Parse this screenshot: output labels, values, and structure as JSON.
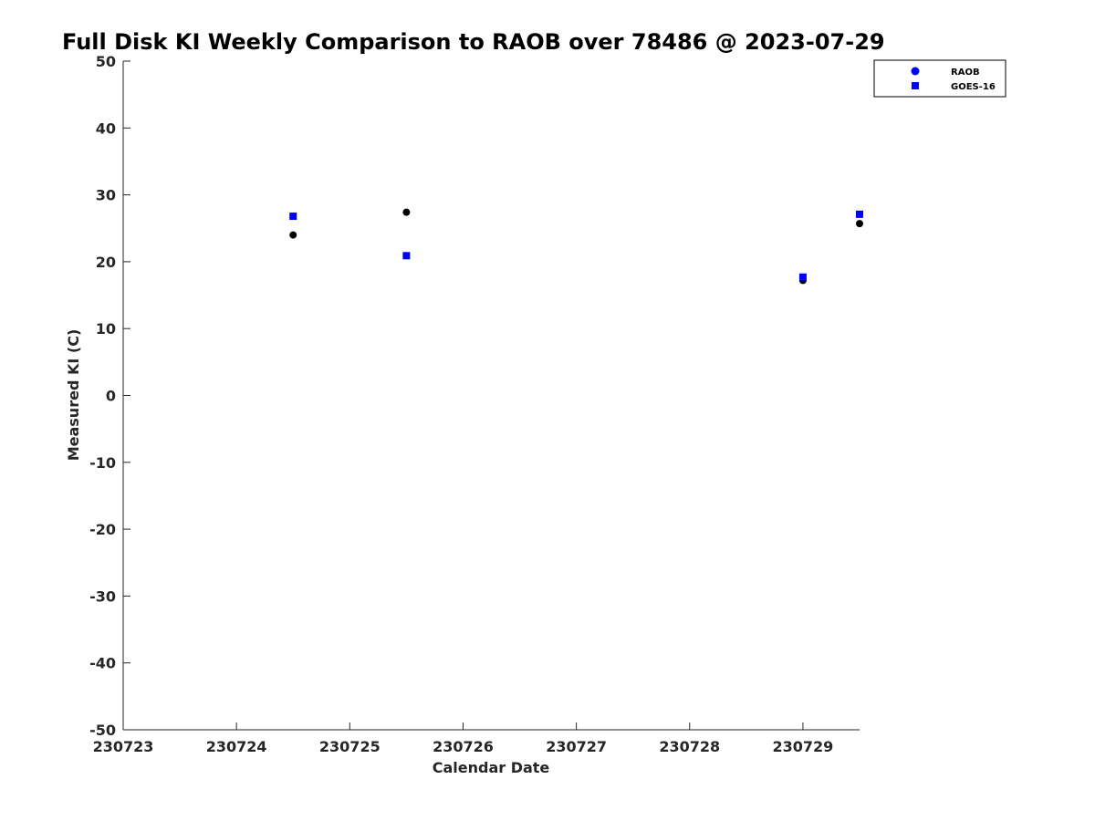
{
  "chart_data": {
    "type": "scatter",
    "title": "Full Disk KI Weekly Comparison to RAOB over 78486 @ 2023-07-29",
    "xlabel": "Calendar Date",
    "ylabel": "Measured KI (C)",
    "xlim": [
      230723,
      230729.5
    ],
    "ylim": [
      -50,
      50
    ],
    "xticks": [
      230723,
      230724,
      230725,
      230726,
      230727,
      230728,
      230729
    ],
    "xtick_labels": [
      "230723",
      "230724",
      "230725",
      "230726",
      "230727",
      "230728",
      "230729"
    ],
    "yticks": [
      -50,
      -40,
      -30,
      -20,
      -10,
      0,
      10,
      20,
      30,
      40,
      50
    ],
    "ytick_labels": [
      "-50",
      "-40",
      "-30",
      "-20",
      "-10",
      "0",
      "10",
      "20",
      "30",
      "40",
      "50"
    ],
    "grid": false,
    "legend_position": "top-right",
    "series": [
      {
        "name": "RAOB",
        "marker": "circle",
        "color": "#000000",
        "legend_color": "#0000ff",
        "points": [
          {
            "x": 230724.5,
            "y": 24.0
          },
          {
            "x": 230725.5,
            "y": 27.4
          },
          {
            "x": 230729.0,
            "y": 17.2
          },
          {
            "x": 230729.5,
            "y": 25.7
          }
        ]
      },
      {
        "name": "GOES-16",
        "marker": "square",
        "color": "#0000ff",
        "legend_color": "#0000ff",
        "points": [
          {
            "x": 230724.5,
            "y": 26.8
          },
          {
            "x": 230725.5,
            "y": 20.9
          },
          {
            "x": 230729.0,
            "y": 17.7
          },
          {
            "x": 230729.5,
            "y": 27.1
          }
        ]
      }
    ]
  }
}
